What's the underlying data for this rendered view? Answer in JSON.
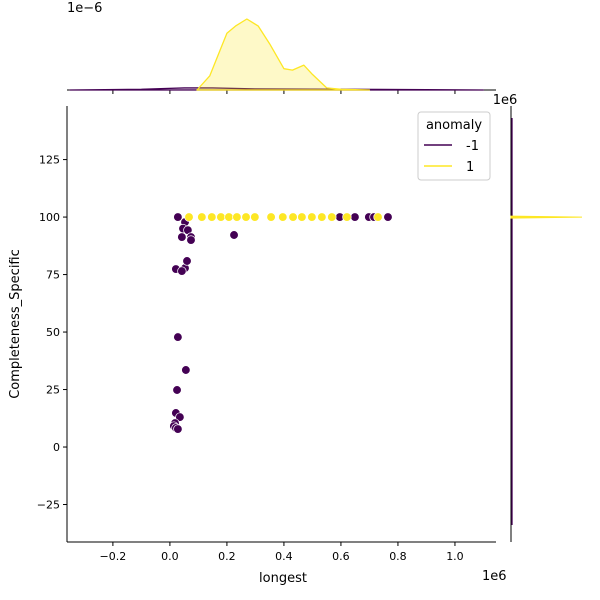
{
  "chart_data": {
    "type": "scatter",
    "xlabel": "longest",
    "ylabel": "Completeness_Specific",
    "x_offset_label": "1e6",
    "top_marginal_offset_label": "1e−6",
    "xlim": [
      -0.361,
      1.144
    ],
    "ylim": [
      -41.3,
      148.3
    ],
    "xticks": [
      -0.2,
      0.0,
      0.2,
      0.4,
      0.6,
      0.8,
      1.0
    ],
    "xtick_labels": [
      "−0.2",
      "0.0",
      "0.2",
      "0.4",
      "0.6",
      "0.8",
      "1.0"
    ],
    "yticks": [
      -25,
      0,
      25,
      50,
      75,
      100,
      125
    ],
    "ytick_labels": [
      "−25",
      "0",
      "25",
      "50",
      "75",
      "100",
      "125"
    ],
    "grid": false,
    "legend": {
      "title": "anomaly",
      "placement": "top-right",
      "entries": [
        "-1",
        "1"
      ]
    },
    "colors": {
      "-1": "#440154",
      "1": "#fde725"
    },
    "series": [
      {
        "name": "-1",
        "points": [
          [
            0.028,
            100
          ],
          [
            0.053,
            97.8
          ],
          [
            0.046,
            95
          ],
          [
            0.063,
            94.3
          ],
          [
            0.042,
            91.3
          ],
          [
            0.074,
            91.3
          ],
          [
            0.074,
            90
          ],
          [
            0.225,
            92.2
          ],
          [
            0.021,
            77.4
          ],
          [
            0.053,
            77.8
          ],
          [
            0.06,
            80.9
          ],
          [
            0.042,
            76.5
          ],
          [
            0.028,
            47.8
          ],
          [
            0.056,
            33.5
          ],
          [
            0.025,
            24.8
          ],
          [
            0.021,
            14.8
          ],
          [
            0.035,
            13
          ],
          [
            0.018,
            10.4
          ],
          [
            0.014,
            9.1
          ],
          [
            0.021,
            8.3
          ],
          [
            0.028,
            7.8
          ],
          [
            0.596,
            100
          ],
          [
            0.649,
            100
          ],
          [
            0.698,
            100
          ],
          [
            0.716,
            100
          ],
          [
            0.765,
            100
          ]
        ]
      },
      {
        "name": "1",
        "points": [
          [
            0.067,
            100
          ],
          [
            0.112,
            100
          ],
          [
            0.147,
            100
          ],
          [
            0.179,
            100
          ],
          [
            0.207,
            100
          ],
          [
            0.235,
            100
          ],
          [
            0.267,
            100
          ],
          [
            0.298,
            100
          ],
          [
            0.355,
            100
          ],
          [
            0.396,
            100
          ],
          [
            0.432,
            100
          ],
          [
            0.463,
            100
          ],
          [
            0.498,
            100
          ],
          [
            0.533,
            100
          ],
          [
            0.568,
            100
          ],
          [
            0.621,
            100
          ],
          [
            0.73,
            100
          ]
        ]
      }
    ],
    "top_marginal_kde": {
      "1": [
        [
          0.095,
          0
        ],
        [
          0.14,
          0.2
        ],
        [
          0.18,
          0.6
        ],
        [
          0.2,
          0.8
        ],
        [
          0.23,
          0.9
        ],
        [
          0.27,
          1.0
        ],
        [
          0.31,
          0.9
        ],
        [
          0.35,
          0.65
        ],
        [
          0.4,
          0.3
        ],
        [
          0.43,
          0.28
        ],
        [
          0.47,
          0.35
        ],
        [
          0.5,
          0.22
        ],
        [
          0.55,
          0.03
        ],
        [
          0.6,
          0.01
        ],
        [
          0.7,
          0
        ]
      ],
      "-1": [
        [
          -0.35,
          0
        ],
        [
          -0.1,
          0.01
        ],
        [
          0.05,
          0.03
        ],
        [
          0.15,
          0.03
        ],
        [
          0.3,
          0.015
        ],
        [
          0.6,
          0.01
        ],
        [
          0.9,
          0.005
        ],
        [
          1.1,
          0
        ]
      ]
    }
  }
}
